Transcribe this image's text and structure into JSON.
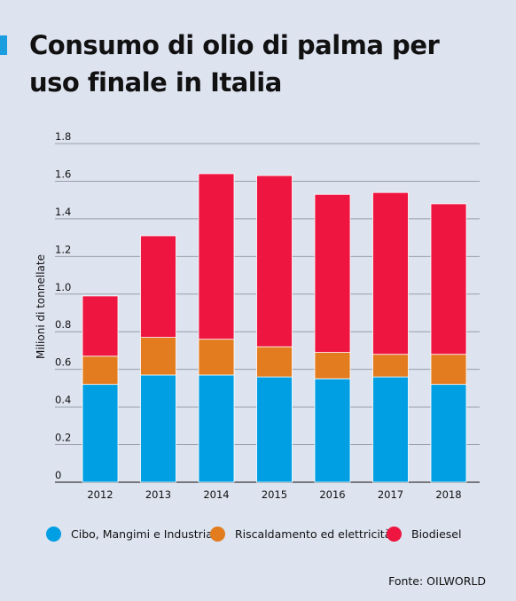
{
  "header": {
    "title": "Consumo di olio di palma per uso finale in Italia",
    "accent_color": "#1a9ee0"
  },
  "chart_data": {
    "type": "bar",
    "stacked": true,
    "categories": [
      "2012",
      "2013",
      "2014",
      "2015",
      "2016",
      "2017",
      "2018"
    ],
    "series": [
      {
        "name": "Cibo, Mangimi e Industria",
        "color": "#009fe3",
        "values": [
          0.52,
          0.57,
          0.57,
          0.56,
          0.55,
          0.56,
          0.52
        ]
      },
      {
        "name": "Riscaldamento ed elettricità",
        "color": "#e37b1f",
        "values": [
          0.15,
          0.2,
          0.19,
          0.16,
          0.14,
          0.12,
          0.16
        ]
      },
      {
        "name": "Biodiesel",
        "color": "#ee1540",
        "values": [
          0.32,
          0.54,
          0.88,
          0.91,
          0.84,
          0.86,
          0.8
        ]
      }
    ],
    "ylabel": "Milioni di tonnellate",
    "xlabel": "",
    "ylim": [
      0,
      1.8
    ],
    "yticks": [
      "0",
      "0.2",
      "0.4",
      "0.6",
      "0.8",
      "1.0",
      "1.2",
      "1.4",
      "1.6",
      "1.8"
    ],
    "grid": true,
    "legend_position": "bottom"
  },
  "source": "Fonte: OILWORLD"
}
